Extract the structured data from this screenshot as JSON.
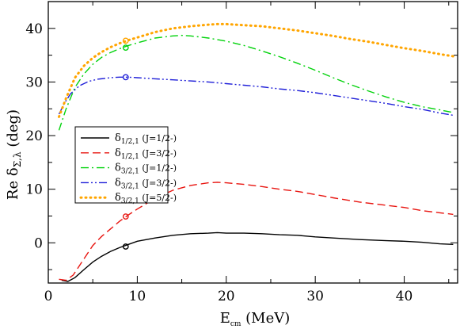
{
  "chart_data": {
    "type": "line",
    "xlabel": {
      "main": "E",
      "sub": "cm",
      "unit": " (MeV)"
    },
    "ylabel": {
      "main": "Re δ",
      "sub": "Σ,λ",
      "unit": " (deg)"
    },
    "xlim": [
      0,
      46
    ],
    "ylim": [
      -7.5,
      45
    ],
    "xticks": [
      0,
      10,
      20,
      30,
      40
    ],
    "yticks": [
      0,
      10,
      20,
      30,
      40
    ],
    "grid": false,
    "legend_placement": "center-left",
    "series": [
      {
        "name": "δ1/2,1 (J=1/2-)",
        "legend": {
          "sym": "δ",
          "sub": "1/2,1",
          "rest": " (J=1/2-)"
        },
        "color": "#000000",
        "dash": "solid",
        "points": [
          [
            1.5,
            -7.0
          ],
          [
            2.2,
            -7.2
          ],
          [
            3,
            -6.5
          ],
          [
            4,
            -5
          ],
          [
            5,
            -3.6
          ],
          [
            6,
            -2.5
          ],
          [
            7,
            -1.6
          ],
          [
            8,
            -0.9
          ],
          [
            9,
            -0.3
          ],
          [
            10,
            0.3
          ],
          [
            12,
            0.9
          ],
          [
            14,
            1.4
          ],
          [
            16,
            1.7
          ],
          [
            18,
            1.8
          ],
          [
            19,
            1.9
          ],
          [
            20,
            1.8
          ],
          [
            22,
            1.8
          ],
          [
            24,
            1.7
          ],
          [
            26,
            1.5
          ],
          [
            28,
            1.4
          ],
          [
            30,
            1.1
          ],
          [
            32,
            0.9
          ],
          [
            35,
            0.6
          ],
          [
            38,
            0.4
          ],
          [
            40,
            0.3
          ],
          [
            42,
            0.1
          ],
          [
            44,
            -0.2
          ],
          [
            45.5,
            -0.3
          ]
        ],
        "marker": [
          8.7,
          -0.7
        ]
      },
      {
        "name": "δ1/2,1 (J=3/2-)",
        "legend": {
          "sym": "δ",
          "sub": "1/2,1",
          "rest": " (J=3/2-)"
        },
        "color": "#e8140f",
        "dash": "long-dash",
        "points": [
          [
            1.2,
            -6.8
          ],
          [
            2,
            -7.0
          ],
          [
            2.8,
            -6.0
          ],
          [
            4,
            -3
          ],
          [
            5,
            -0.5
          ],
          [
            6,
            1.2
          ],
          [
            7,
            2.6
          ],
          [
            8,
            4.0
          ],
          [
            9,
            5.2
          ],
          [
            10,
            6.3
          ],
          [
            12,
            8.3
          ],
          [
            14,
            9.8
          ],
          [
            16,
            10.7
          ],
          [
            18,
            11.2
          ],
          [
            19,
            11.3
          ],
          [
            20,
            11.2
          ],
          [
            22,
            10.9
          ],
          [
            24,
            10.5
          ],
          [
            26,
            10.0
          ],
          [
            28,
            9.6
          ],
          [
            30,
            9.0
          ],
          [
            32,
            8.4
          ],
          [
            35,
            7.6
          ],
          [
            38,
            7.0
          ],
          [
            40,
            6.6
          ],
          [
            42,
            6.0
          ],
          [
            44,
            5.6
          ],
          [
            45.5,
            5.3
          ]
        ],
        "marker": [
          8.7,
          4.9
        ]
      },
      {
        "name": "δ3/2,1 (J=1/2-)",
        "legend": {
          "sym": "δ",
          "sub": "3/2,1",
          "rest": " (J=1/2-)"
        },
        "color": "#00d20a",
        "dash": "dash-dot",
        "points": [
          [
            1.2,
            21
          ],
          [
            2,
            25
          ],
          [
            3,
            29
          ],
          [
            4,
            31.5
          ],
          [
            5,
            33.3
          ],
          [
            6,
            34.6
          ],
          [
            7,
            35.5
          ],
          [
            8,
            36.2
          ],
          [
            9,
            36.8
          ],
          [
            10,
            37.3
          ],
          [
            12,
            38.2
          ],
          [
            14,
            38.6
          ],
          [
            15,
            38.7
          ],
          [
            16,
            38.6
          ],
          [
            18,
            38.2
          ],
          [
            20,
            37.6
          ],
          [
            22,
            36.8
          ],
          [
            24,
            35.8
          ],
          [
            26,
            34.7
          ],
          [
            28,
            33.5
          ],
          [
            30,
            32.2
          ],
          [
            32,
            30.8
          ],
          [
            34,
            29.5
          ],
          [
            36,
            28.3
          ],
          [
            38,
            27.2
          ],
          [
            40,
            26.2
          ],
          [
            42,
            25.4
          ],
          [
            44,
            24.8
          ],
          [
            45.5,
            24.3
          ]
        ],
        "marker": [
          8.7,
          36.4
        ]
      },
      {
        "name": "δ3/2,1 (J=3/2-)",
        "legend": {
          "sym": "δ",
          "sub": "3/2,1",
          "rest": " (J=3/2-)"
        },
        "color": "#1e1ed8",
        "dash": "dash-dot-dot",
        "points": [
          [
            1.2,
            24
          ],
          [
            1.8,
            26
          ],
          [
            2.5,
            27.8
          ],
          [
            3.5,
            29.3
          ],
          [
            4.5,
            30.1
          ],
          [
            5.5,
            30.5
          ],
          [
            7,
            30.8
          ],
          [
            8,
            30.9
          ],
          [
            9,
            30.9
          ],
          [
            10,
            30.8
          ],
          [
            12,
            30.6
          ],
          [
            14,
            30.4
          ],
          [
            16,
            30.2
          ],
          [
            18,
            30.0
          ],
          [
            20,
            29.7
          ],
          [
            22,
            29.4
          ],
          [
            24,
            29.1
          ],
          [
            26,
            28.7
          ],
          [
            28,
            28.4
          ],
          [
            30,
            28.0
          ],
          [
            32,
            27.5
          ],
          [
            34,
            27.0
          ],
          [
            36,
            26.5
          ],
          [
            38,
            26.0
          ],
          [
            40,
            25.4
          ],
          [
            42,
            24.9
          ],
          [
            44,
            24.2
          ],
          [
            45.5,
            23.8
          ]
        ],
        "marker": [
          8.7,
          30.9
        ]
      },
      {
        "name": "δ3/2,1 (J=5/2-)",
        "legend": {
          "sym": "δ",
          "sub": "3/2,1",
          "rest": " (J=5/2-)"
        },
        "color": "#ffa500",
        "dash": "dotted",
        "points": [
          [
            1.2,
            23.5
          ],
          [
            2,
            27
          ],
          [
            3,
            30.8
          ],
          [
            4,
            33.0
          ],
          [
            5,
            34.5
          ],
          [
            6,
            35.6
          ],
          [
            7,
            36.5
          ],
          [
            8,
            37.2
          ],
          [
            9,
            37.8
          ],
          [
            10,
            38.3
          ],
          [
            12,
            39.3
          ],
          [
            14,
            40.0
          ],
          [
            16,
            40.4
          ],
          [
            18,
            40.7
          ],
          [
            19,
            40.8
          ],
          [
            20,
            40.8
          ],
          [
            22,
            40.6
          ],
          [
            24,
            40.4
          ],
          [
            26,
            40.0
          ],
          [
            28,
            39.6
          ],
          [
            30,
            39.1
          ],
          [
            32,
            38.6
          ],
          [
            34,
            38.0
          ],
          [
            36,
            37.5
          ],
          [
            38,
            36.9
          ],
          [
            40,
            36.3
          ],
          [
            42,
            35.8
          ],
          [
            44,
            35.2
          ],
          [
            45.5,
            34.8
          ]
        ],
        "marker": [
          8.7,
          37.7
        ]
      }
    ]
  }
}
